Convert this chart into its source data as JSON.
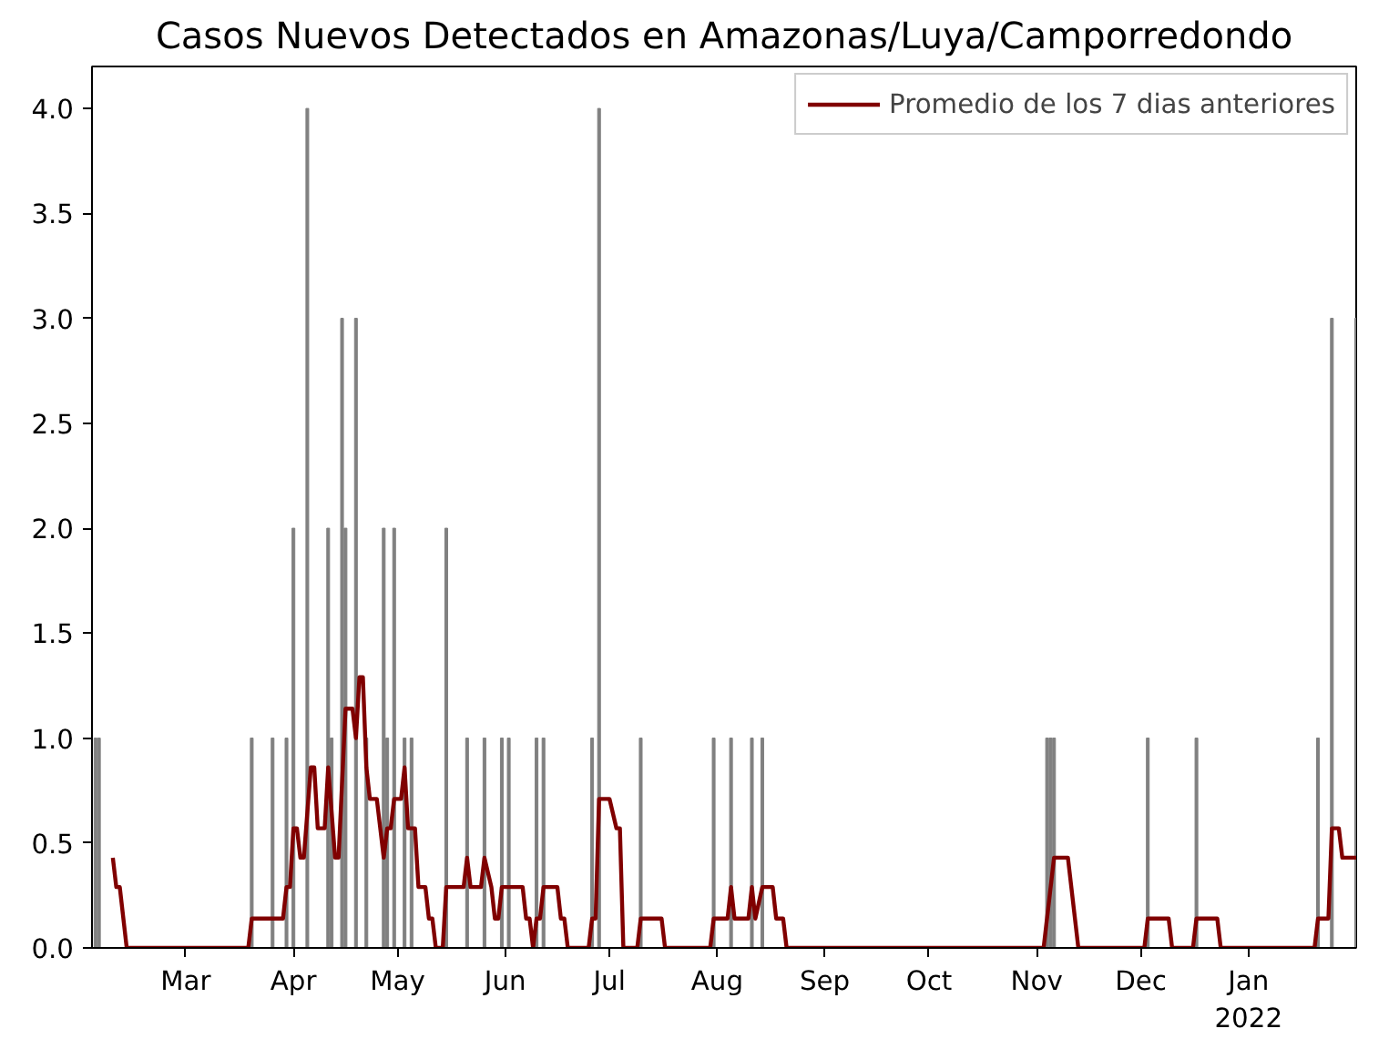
{
  "chart_data": {
    "type": "bar",
    "title": "Casos Nuevos Detectados en Amazonas/Luya/Camporredondo",
    "series": [
      {
        "color": "#808080",
        "x": [
          "2021-02-03",
          "2021-02-04",
          "2021-03-20",
          "2021-03-26",
          "2021-03-30",
          "2021-04-01",
          "2021-04-05",
          "2021-04-11",
          "2021-04-12",
          "2021-04-15",
          "2021-04-16",
          "2021-04-19",
          "2021-04-22",
          "2021-04-27",
          "2021-04-28",
          "2021-04-30",
          "2021-05-03",
          "2021-05-05",
          "2021-05-15",
          "2021-05-21",
          "2021-05-26",
          "2021-05-31",
          "2021-06-02",
          "2021-06-10",
          "2021-06-12",
          "2021-06-26",
          "2021-06-28",
          "2021-07-10",
          "2021-07-31",
          "2021-08-05",
          "2021-08-11",
          "2021-08-14",
          "2021-11-04",
          "2021-11-05",
          "2021-11-06",
          "2021-12-03",
          "2021-12-17",
          "2022-01-21",
          "2022-01-25",
          "2022-02-01"
        ],
        "values": [
          1,
          1,
          1,
          1,
          1,
          2,
          4,
          2,
          1,
          3,
          2,
          3,
          1,
          2,
          1,
          2,
          1,
          1,
          2,
          1,
          1,
          1,
          1,
          1,
          1,
          1,
          4,
          1,
          1,
          1,
          1,
          1,
          1,
          1,
          1,
          1,
          1,
          1,
          3,
          3
        ]
      },
      {
        "type": "line",
        "name": "Promedio de los 7 dias anteriores",
        "color": "#800000",
        "x": [
          "2021-02-08",
          "2021-02-09",
          "2021-02-10",
          "2021-02-12",
          "2021-03-19",
          "2021-03-20",
          "2021-03-29",
          "2021-03-30",
          "2021-03-31",
          "2021-04-01",
          "2021-04-02",
          "2021-04-03",
          "2021-04-04",
          "2021-04-06",
          "2021-04-07",
          "2021-04-08",
          "2021-04-10",
          "2021-04-11",
          "2021-04-13",
          "2021-04-14",
          "2021-04-16",
          "2021-04-18",
          "2021-04-19",
          "2021-04-20",
          "2021-04-21",
          "2021-04-22",
          "2021-04-23",
          "2021-04-25",
          "2021-04-27",
          "2021-04-28",
          "2021-04-29",
          "2021-04-30",
          "2021-05-02",
          "2021-05-03",
          "2021-05-04",
          "2021-05-06",
          "2021-05-07",
          "2021-05-09",
          "2021-05-10",
          "2021-05-11",
          "2021-05-12",
          "2021-05-14",
          "2021-05-15",
          "2021-05-20",
          "2021-05-21",
          "2021-05-22",
          "2021-05-25",
          "2021-05-26",
          "2021-05-28",
          "2021-05-29",
          "2021-05-30",
          "2021-05-31",
          "2021-06-06",
          "2021-06-07",
          "2021-06-08",
          "2021-06-09",
          "2021-06-10",
          "2021-06-11",
          "2021-06-12",
          "2021-06-16",
          "2021-06-17",
          "2021-06-18",
          "2021-06-19",
          "2021-06-25",
          "2021-06-26",
          "2021-06-27",
          "2021-06-28",
          "2021-07-01",
          "2021-07-03",
          "2021-07-04",
          "2021-07-05",
          "2021-07-09",
          "2021-07-10",
          "2021-07-16",
          "2021-07-17",
          "2021-07-30",
          "2021-07-31",
          "2021-08-04",
          "2021-08-05",
          "2021-08-06",
          "2021-08-10",
          "2021-08-11",
          "2021-08-12",
          "2021-08-14",
          "2021-08-17",
          "2021-08-18",
          "2021-08-20",
          "2021-08-21",
          "2021-11-03",
          "2021-11-06",
          "2021-11-10",
          "2021-11-13",
          "2021-12-02",
          "2021-12-03",
          "2021-12-09",
          "2021-12-10",
          "2021-12-16",
          "2021-12-17",
          "2021-12-23",
          "2021-12-24",
          "2022-01-20",
          "2022-01-21",
          "2022-01-24",
          "2022-01-25",
          "2022-01-27",
          "2022-01-28",
          "2022-02-01"
        ],
        "values": [
          0.43,
          0.29,
          0.29,
          0,
          0,
          0.14,
          0.14,
          0.29,
          0.29,
          0.57,
          0.57,
          0.43,
          0.43,
          0.86,
          0.86,
          0.57,
          0.57,
          0.86,
          0.43,
          0.43,
          1.14,
          1.14,
          1.0,
          1.29,
          1.29,
          0.86,
          0.71,
          0.71,
          0.43,
          0.57,
          0.57,
          0.71,
          0.71,
          0.86,
          0.57,
          0.57,
          0.29,
          0.29,
          0.14,
          0.14,
          0,
          0,
          0.29,
          0.29,
          0.43,
          0.29,
          0.29,
          0.43,
          0.29,
          0.14,
          0.14,
          0.29,
          0.29,
          0.14,
          0.14,
          0,
          0.14,
          0.14,
          0.29,
          0.29,
          0.14,
          0.14,
          0,
          0,
          0.14,
          0.14,
          0.71,
          0.71,
          0.57,
          0.57,
          0,
          0,
          0.14,
          0.14,
          0,
          0,
          0.14,
          0.14,
          0.29,
          0.14,
          0.14,
          0.29,
          0.14,
          0.29,
          0.29,
          0.14,
          0.14,
          0,
          0,
          0.43,
          0.43,
          0,
          0,
          0.14,
          0.14,
          0,
          0,
          0.14,
          0.14,
          0,
          0,
          0.14,
          0.14,
          0.57,
          0.57,
          0.43,
          0.43
        ]
      }
    ],
    "xlim": [
      "2021-02-02",
      "2022-02-01"
    ],
    "xticks": [
      {
        "value": "2021-03-01",
        "label": "Mar"
      },
      {
        "value": "2021-04-01",
        "label": "Apr"
      },
      {
        "value": "2021-05-01",
        "label": "May"
      },
      {
        "value": "2021-06-01",
        "label": "Jun"
      },
      {
        "value": "2021-07-01",
        "label": "Jul"
      },
      {
        "value": "2021-08-01",
        "label": "Aug"
      },
      {
        "value": "2021-09-01",
        "label": "Sep"
      },
      {
        "value": "2021-10-01",
        "label": "Oct"
      },
      {
        "value": "2021-11-01",
        "label": "Nov"
      },
      {
        "value": "2021-12-01",
        "label": "Dec"
      },
      {
        "value": "2022-01-01",
        "label": "Jan\n2022"
      }
    ],
    "ylim": [
      0,
      4.2
    ],
    "yticks": [
      {
        "value": 0,
        "label": "0.0"
      },
      {
        "value": 0.5,
        "label": "0.5"
      },
      {
        "value": 1,
        "label": "1.0"
      },
      {
        "value": 1.5,
        "label": "1.5"
      },
      {
        "value": 2,
        "label": "2.0"
      },
      {
        "value": 2.5,
        "label": "2.5"
      },
      {
        "value": 3,
        "label": "3.0"
      },
      {
        "value": 3.5,
        "label": "3.5"
      },
      {
        "value": 4,
        "label": "4.0"
      }
    ],
    "legend": "top right",
    "grid": false
  }
}
